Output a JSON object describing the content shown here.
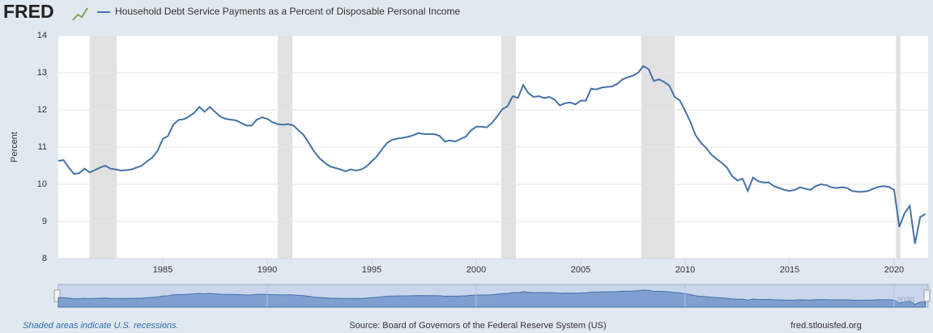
{
  "chart_data": {
    "type": "line",
    "logo": "FRED",
    "series": [
      {
        "name": "Household Debt Service Payments as a Percent of Disposable Personal Income",
        "color": "#4572a7",
        "values": [
          10.63,
          10.65,
          10.45,
          10.28,
          10.3,
          10.42,
          10.32,
          10.38,
          10.45,
          10.5,
          10.42,
          10.4,
          10.37,
          10.38,
          10.4,
          10.45,
          10.5,
          10.62,
          10.72,
          10.9,
          11.22,
          11.3,
          11.6,
          11.73,
          11.75,
          11.82,
          11.92,
          12.08,
          11.95,
          12.08,
          11.95,
          11.82,
          11.76,
          11.74,
          11.72,
          11.65,
          11.58,
          11.58,
          11.74,
          11.8,
          11.76,
          11.67,
          11.62,
          11.6,
          11.62,
          11.58,
          11.45,
          11.32,
          11.1,
          10.88,
          10.7,
          10.58,
          10.48,
          10.44,
          10.4,
          10.35,
          10.4,
          10.37,
          10.4,
          10.48,
          10.62,
          10.75,
          10.95,
          11.12,
          11.2,
          11.23,
          11.25,
          11.28,
          11.32,
          11.38,
          11.35,
          11.35,
          11.35,
          11.3,
          11.15,
          11.18,
          11.15,
          11.22,
          11.28,
          11.45,
          11.55,
          11.55,
          11.53,
          11.65,
          11.82,
          12.02,
          12.1,
          12.37,
          12.32,
          12.67,
          12.45,
          12.35,
          12.37,
          12.32,
          12.35,
          12.28,
          12.12,
          12.18,
          12.2,
          12.15,
          12.25,
          12.25,
          12.57,
          12.55,
          12.6,
          12.62,
          12.63,
          12.7,
          12.82,
          12.88,
          12.92,
          13.0,
          13.18,
          13.1,
          12.78,
          12.82,
          12.75,
          12.65,
          12.35,
          12.25,
          11.98,
          11.68,
          11.32,
          11.12,
          10.98,
          10.8,
          10.68,
          10.58,
          10.45,
          10.22,
          10.1,
          10.15,
          9.82,
          10.18,
          10.08,
          10.05,
          10.05,
          9.95,
          9.9,
          9.85,
          9.82,
          9.85,
          9.92,
          9.88,
          9.85,
          9.95,
          10.0,
          9.98,
          9.92,
          9.9,
          9.92,
          9.9,
          9.82,
          9.8,
          9.8,
          9.82,
          9.88,
          9.93,
          9.95,
          9.93,
          9.85,
          8.85,
          9.22,
          9.42,
          8.4,
          9.12,
          9.2
        ]
      }
    ],
    "x": [
      1980,
      1980.25,
      1980.5,
      1980.75,
      1981,
      1981.25,
      1981.5,
      1981.75,
      1982,
      1982.25,
      1982.5,
      1982.75,
      1983,
      1983.25,
      1983.5,
      1983.75,
      1984,
      1984.25,
      1984.5,
      1984.75,
      1985,
      1985.25,
      1985.5,
      1985.75,
      1986,
      1986.25,
      1986.5,
      1986.75,
      1987,
      1987.25,
      1987.5,
      1987.75,
      1988,
      1988.25,
      1988.5,
      1988.75,
      1989,
      1989.25,
      1989.5,
      1989.75,
      1990,
      1990.25,
      1990.5,
      1990.75,
      1991,
      1991.25,
      1991.5,
      1991.75,
      1992,
      1992.25,
      1992.5,
      1992.75,
      1993,
      1993.25,
      1993.5,
      1993.75,
      1994,
      1994.25,
      1994.5,
      1994.75,
      1995,
      1995.25,
      1995.5,
      1995.75,
      1996,
      1996.25,
      1996.5,
      1996.75,
      1997,
      1997.25,
      1997.5,
      1997.75,
      1998,
      1998.25,
      1998.5,
      1998.75,
      1999,
      1999.25,
      1999.5,
      1999.75,
      2000,
      2000.25,
      2000.5,
      2000.75,
      2001,
      2001.25,
      2001.5,
      2001.75,
      2002,
      2002.25,
      2002.5,
      2002.75,
      2003,
      2003.25,
      2003.5,
      2003.75,
      2004,
      2004.25,
      2004.5,
      2004.75,
      2005,
      2005.25,
      2005.5,
      2005.75,
      2006,
      2006.25,
      2006.5,
      2006.75,
      2007,
      2007.25,
      2007.5,
      2007.75,
      2008,
      2008.25,
      2008.5,
      2008.75,
      2009,
      2009.25,
      2009.5,
      2009.75,
      2010,
      2010.25,
      2010.5,
      2010.75,
      2011,
      2011.25,
      2011.5,
      2011.75,
      2012,
      2012.25,
      2012.5,
      2012.75,
      2013,
      2013.25,
      2013.5,
      2013.75,
      2014,
      2014.25,
      2014.5,
      2014.75,
      2015,
      2015.25,
      2015.5,
      2015.75,
      2016,
      2016.25,
      2016.5,
      2016.75,
      2017,
      2017.25,
      2017.5,
      2017.75,
      2018,
      2018.25,
      2018.5,
      2018.75,
      2019,
      2019.25,
      2019.5,
      2019.75,
      2020,
      2020.25,
      2020.5,
      2020.75,
      2021,
      2021.25,
      2021.5
    ],
    "xlim": [
      1980,
      2021.63
    ],
    "xticks": [
      1985,
      1990,
      1995,
      2000,
      2005,
      2010,
      2015,
      2020
    ],
    "ylim": [
      8,
      14
    ],
    "yticks": [
      8,
      9,
      10,
      11,
      12,
      13,
      14
    ],
    "ylabel": "Percent",
    "recessions": [
      [
        1981.5,
        1982.8
      ],
      [
        1990.5,
        1991.2
      ],
      [
        2001.2,
        2001.9
      ],
      [
        2007.9,
        2009.5
      ],
      [
        2020.1,
        2020.3
      ]
    ],
    "recession_color": "#e1e1e1",
    "navigator_ticks": [
      1990,
      2000,
      2010,
      2020
    ],
    "note": "Shaded areas indicate U.S. recessions.",
    "source": "Source: Board of Governors of the Federal Reserve System (US)",
    "site": "fred.stlouisfed.org"
  }
}
